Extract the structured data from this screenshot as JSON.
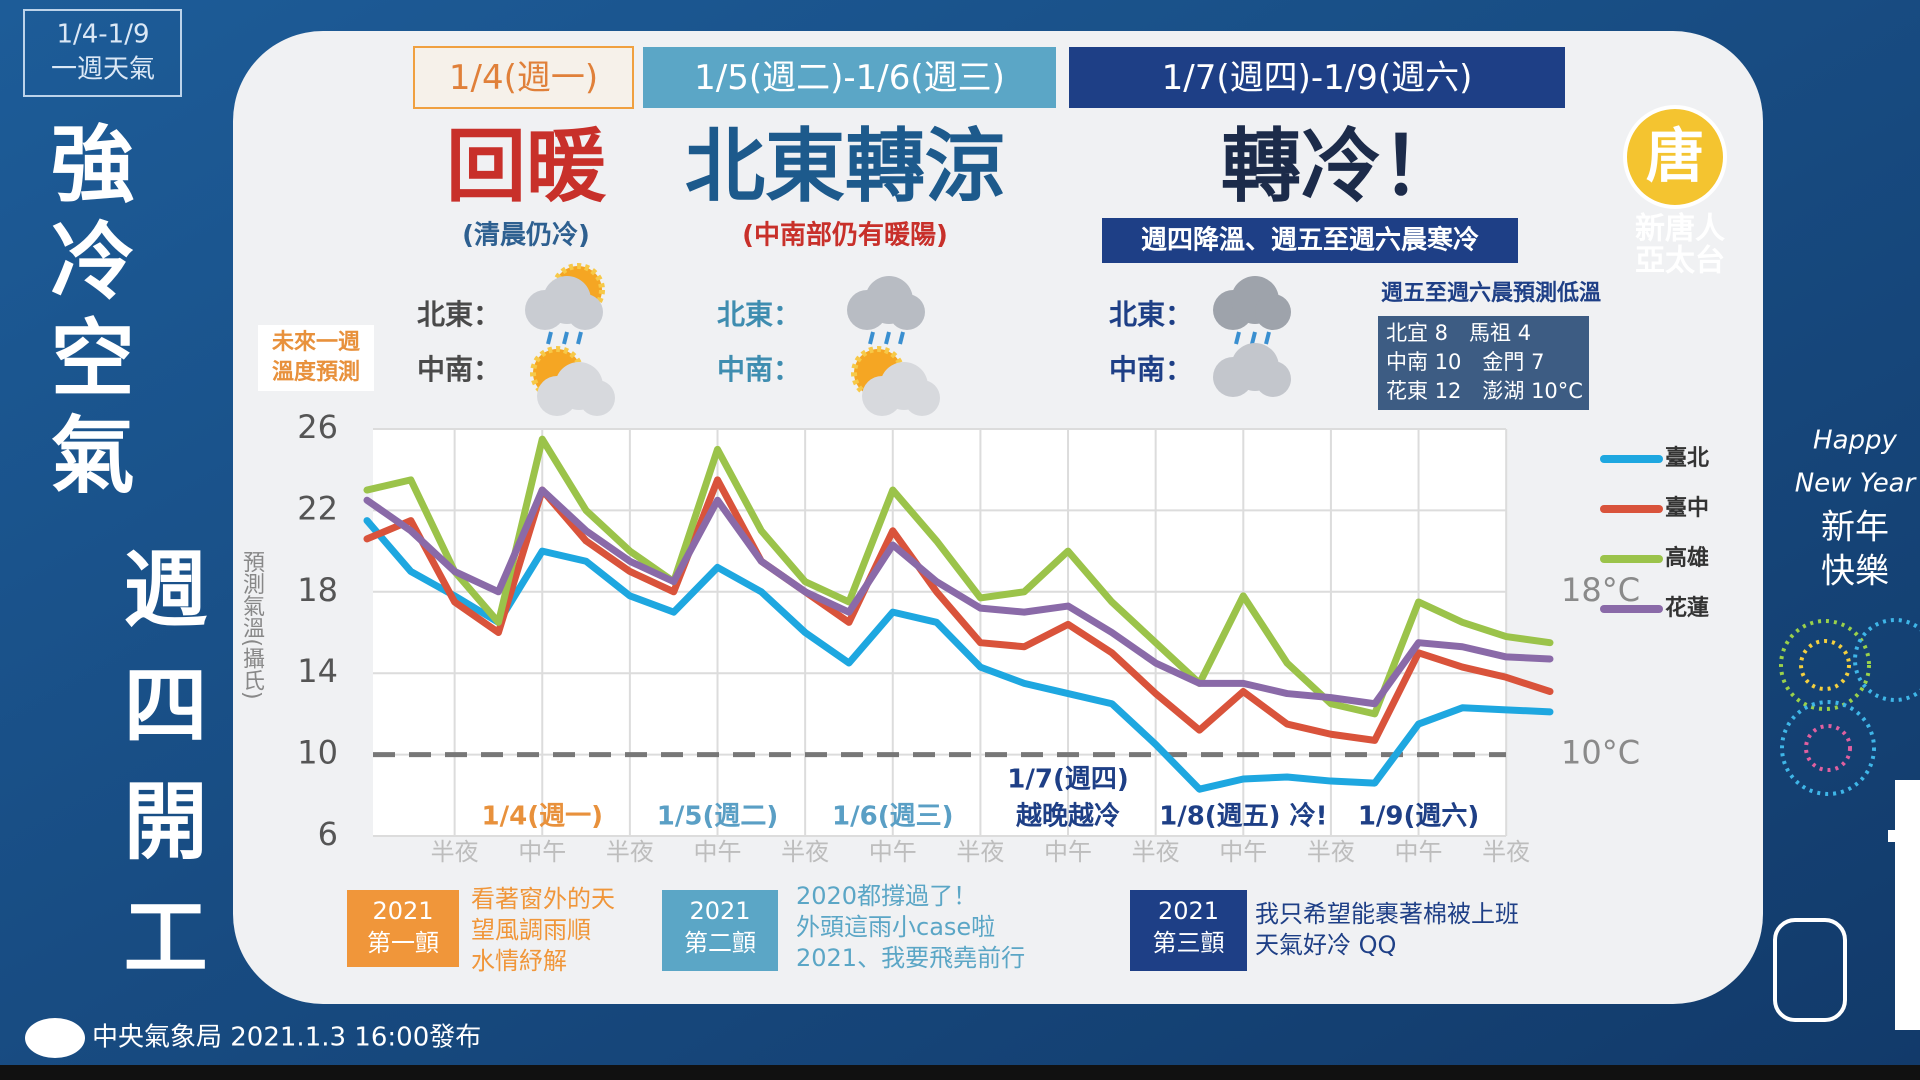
{
  "badge": [
    "1/4-1/9",
    "一週天氣"
  ],
  "side_title": [
    "強冷空氣",
    "週四開工"
  ],
  "periods": [
    {
      "date": "1/4(週一)",
      "headline": "回暖",
      "note": "(清晨仍冷)",
      "north_east": "北東：",
      "central_south": "中南："
    },
    {
      "date": "1/5(週二)-1/6(週三)",
      "headline": "北東轉涼",
      "note": "(中南部仍有暖陽)",
      "north_east": "北東：",
      "central_south": "中南："
    },
    {
      "date": "1/7(週四)-1/9(週六)",
      "headline": "轉冷！",
      "note": "週四降溫、週五至週六晨寒冷",
      "north_east": "北東：",
      "central_south": "中南："
    }
  ],
  "lows": {
    "title": "週五至週六晨預測低溫",
    "rows": [
      "北宜 8　馬祖 4",
      "中南 10　金門 7",
      "花東 12　澎湖 10°C"
    ]
  },
  "chart_label": [
    "未來一週",
    "溫度預測"
  ],
  "chart_data": {
    "type": "line",
    "y_label": "預測氣溫(攝氏)",
    "x": [
      -1,
      -0.5,
      0,
      0.5,
      1,
      1.5,
      2,
      2.5,
      3,
      3.5,
      4,
      4.5,
      5,
      5.5,
      6,
      6.5,
      7,
      7.5,
      8,
      8.5,
      9,
      9.5,
      10,
      10.5,
      11,
      11.5,
      12,
      12.5
    ],
    "xlim": [
      -1,
      12.5
    ],
    "xticks": [
      {
        "value": 0,
        "label": "半夜"
      },
      {
        "value": 1,
        "label": "中午"
      },
      {
        "value": 2,
        "label": "半夜"
      },
      {
        "value": 3,
        "label": "中午"
      },
      {
        "value": 4,
        "label": "半夜"
      },
      {
        "value": 5,
        "label": "中午"
      },
      {
        "value": 6,
        "label": "半夜"
      },
      {
        "value": 7,
        "label": "中午"
      },
      {
        "value": 8,
        "label": "半夜"
      },
      {
        "value": 9,
        "label": "中午"
      },
      {
        "value": 10,
        "label": "半夜"
      },
      {
        "value": 11,
        "label": "中午"
      },
      {
        "value": 12,
        "label": "半夜"
      }
    ],
    "ylim": [
      6,
      26
    ],
    "yticks": [
      6,
      10,
      14,
      18,
      22,
      26
    ],
    "grid": true,
    "legend": "right",
    "series": [
      {
        "name": "臺北",
        "color": "#1ea7e0",
        "values": [
          21.5,
          19,
          17.8,
          16.5,
          20,
          19.5,
          17.8,
          17,
          19.2,
          18,
          16,
          14.5,
          17,
          16.5,
          14.3,
          13.5,
          13,
          12.5,
          10.5,
          8.3,
          8.8,
          8.9,
          8.7,
          8.6,
          11.5,
          12.3,
          12.2,
          12.1
        ]
      },
      {
        "name": "臺中",
        "color": "#d9533b",
        "values": [
          20.6,
          21.5,
          17.5,
          16,
          23,
          20.5,
          19,
          18,
          23.5,
          19.5,
          18,
          16.5,
          21,
          18,
          15.5,
          15.3,
          16.4,
          15,
          13,
          11.2,
          13.1,
          11.5,
          11,
          10.7,
          15,
          14.3,
          13.8,
          13.1
        ]
      },
      {
        "name": "高雄",
        "color": "#9bc34a",
        "values": [
          23,
          23.5,
          19,
          16.5,
          25.5,
          22,
          20,
          18.5,
          25,
          21,
          18.5,
          17.5,
          23,
          20.5,
          17.7,
          18,
          20,
          17.5,
          15.5,
          13.5,
          17.8,
          14.5,
          12.5,
          12,
          17.5,
          16.5,
          15.8,
          15.5
        ]
      },
      {
        "name": "花蓮",
        "color": "#8a6aa8",
        "values": [
          22.5,
          21,
          19,
          18,
          23,
          21,
          19.5,
          18.5,
          22.5,
          19.5,
          18,
          17,
          20.3,
          18.5,
          17.2,
          17,
          17.3,
          16,
          14.5,
          13.5,
          13.5,
          13,
          12.8,
          12.5,
          15.5,
          15.3,
          14.8,
          14.7
        ]
      }
    ],
    "reference_lines": [
      {
        "value": 10,
        "label": "10°C",
        "line": true
      },
      {
        "value": 18,
        "label": "18°C",
        "line": false
      }
    ],
    "day_labels": [
      "1/4(週一)",
      "1/5(週二)",
      "1/6(週三)",
      "越晚越冷",
      "1/8(週五) 冷!",
      "1/9(週六)"
    ],
    "day_label_extra": "1/7(週四)"
  },
  "banners": [
    {
      "tag": [
        "2021",
        "第一顫"
      ],
      "text": [
        "看著窗外的天",
        "望風調雨順",
        "水情紓解"
      ]
    },
    {
      "tag": [
        "2021",
        "第二顫"
      ],
      "text": [
        "2020都撐過了！",
        "外頭這雨小case啦",
        "2021、我要飛堯前行"
      ]
    },
    {
      "tag": [
        "2021",
        "第三顫"
      ],
      "text": [
        "我只希望能裹著棉被上班",
        "天氣好冷 QQ"
      ]
    }
  ],
  "footer": "中央氣象局 2021.1.3 16:00發布",
  "logo": {
    "symbol": "唐",
    "lines": [
      "新唐人",
      "亞太台"
    ]
  },
  "greeting": [
    "Happy",
    "New Year",
    "新年",
    "快樂"
  ]
}
